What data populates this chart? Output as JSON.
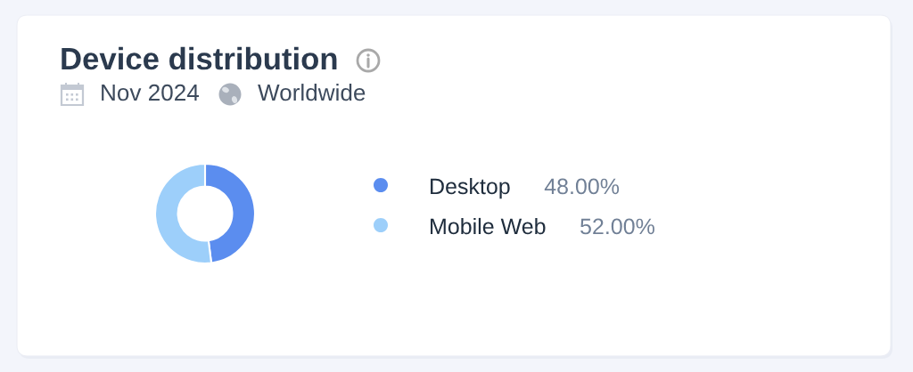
{
  "chart_data": {
    "type": "donut",
    "title": "Device distribution",
    "subtitle": "Nov 2024",
    "annotations": [
      "Worldwide"
    ],
    "categories": [
      "Desktop",
      "Mobile Web"
    ],
    "values": [
      48,
      52
    ],
    "value_labels": [
      "48.00%",
      "52.00%"
    ],
    "colors": [
      "#5b8def",
      "#9dcffa"
    ],
    "legend": "right"
  }
}
